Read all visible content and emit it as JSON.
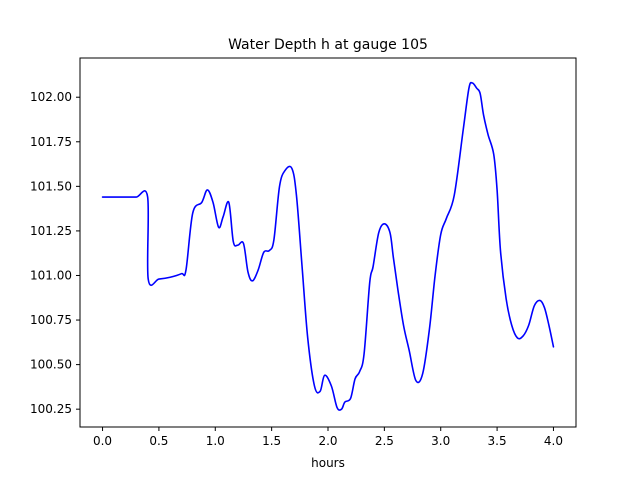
{
  "chart_data": {
    "type": "line",
    "title": "Water Depth h at gauge 105",
    "xlabel": "hours",
    "ylabel": "",
    "xlim": [
      -0.2,
      4.2
    ],
    "ylim": [
      100.15,
      102.22
    ],
    "grid": false,
    "line_color": "#0000ff",
    "x_ticks": [
      {
        "value": 0.0,
        "label": "0.0"
      },
      {
        "value": 0.5,
        "label": "0.5"
      },
      {
        "value": 1.0,
        "label": "1.0"
      },
      {
        "value": 1.5,
        "label": "1.5"
      },
      {
        "value": 2.0,
        "label": "2.0"
      },
      {
        "value": 2.5,
        "label": "2.5"
      },
      {
        "value": 3.0,
        "label": "3.0"
      },
      {
        "value": 3.5,
        "label": "3.5"
      },
      {
        "value": 4.0,
        "label": "4.0"
      }
    ],
    "y_ticks": [
      {
        "value": 100.25,
        "label": "100.25"
      },
      {
        "value": 100.5,
        "label": "100.50"
      },
      {
        "value": 100.75,
        "label": "100.75"
      },
      {
        "value": 101.0,
        "label": "101.00"
      },
      {
        "value": 101.25,
        "label": "101.25"
      },
      {
        "value": 101.5,
        "label": "101.50"
      },
      {
        "value": 101.75,
        "label": "101.75"
      },
      {
        "value": 102.0,
        "label": "102.00"
      }
    ],
    "series": [
      {
        "x": [
          0.0,
          0.1,
          0.2,
          0.3,
          0.4,
          0.405,
          0.5,
          0.6,
          0.7,
          0.74,
          0.8,
          0.88,
          0.93,
          0.98,
          1.03,
          1.07,
          1.12,
          1.16,
          1.2,
          1.25,
          1.29,
          1.33,
          1.38,
          1.43,
          1.48,
          1.52,
          1.57,
          1.62,
          1.68,
          1.72,
          1.77,
          1.82,
          1.88,
          1.93,
          1.97,
          2.03,
          2.08,
          2.12,
          2.15,
          2.2,
          2.24,
          2.28,
          2.32,
          2.37,
          2.4,
          2.45,
          2.5,
          2.55,
          2.58,
          2.62,
          2.67,
          2.72,
          2.78,
          2.84,
          2.9,
          2.95,
          3.0,
          3.05,
          3.12,
          3.2,
          3.25,
          3.28,
          3.32,
          3.35,
          3.38,
          3.42,
          3.47,
          3.5,
          3.53,
          3.58,
          3.63,
          3.68,
          3.73,
          3.78,
          3.83,
          3.88,
          3.92,
          3.96,
          4.0
        ],
        "y": [
          101.44,
          101.44,
          101.44,
          101.44,
          101.44,
          100.98,
          100.98,
          100.99,
          101.01,
          101.03,
          101.35,
          101.41,
          101.48,
          101.41,
          101.27,
          101.33,
          101.41,
          101.19,
          101.17,
          101.18,
          101.02,
          100.97,
          101.03,
          101.13,
          101.14,
          101.2,
          101.5,
          101.59,
          101.6,
          101.45,
          101.05,
          100.65,
          100.38,
          100.35,
          100.44,
          100.38,
          100.26,
          100.25,
          100.29,
          100.31,
          100.42,
          100.46,
          100.56,
          100.96,
          101.05,
          101.24,
          101.29,
          101.24,
          101.1,
          100.92,
          100.72,
          100.58,
          100.41,
          100.45,
          100.7,
          101.0,
          101.23,
          101.32,
          101.45,
          101.82,
          102.05,
          102.08,
          102.05,
          102.02,
          101.9,
          101.79,
          101.68,
          101.48,
          101.14,
          100.87,
          100.72,
          100.65,
          100.66,
          100.72,
          100.83,
          100.86,
          100.82,
          100.72,
          100.6
        ]
      }
    ]
  }
}
